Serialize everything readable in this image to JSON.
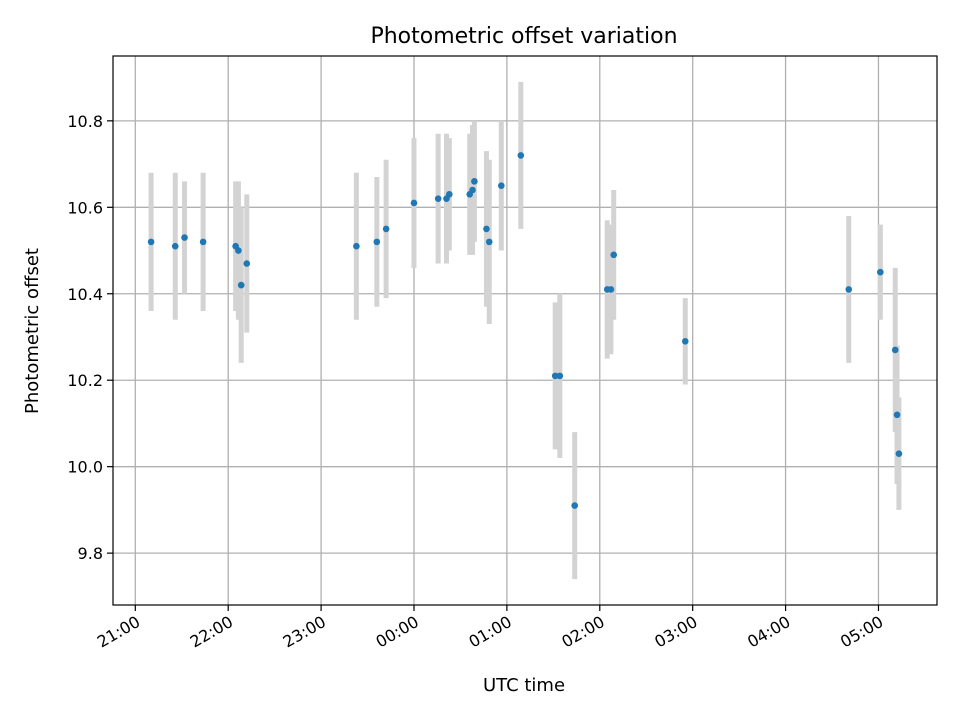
{
  "chart_data": {
    "type": "scatter",
    "title": "Photometric offset variation",
    "xlabel": "UTC time",
    "ylabel": "Photometric offset",
    "x_tick_values": [
      -3,
      -2,
      -1,
      0,
      1,
      2,
      3,
      4,
      5
    ],
    "x_tick_labels": [
      "21:00",
      "22:00",
      "23:00",
      "00:00",
      "01:00",
      "02:00",
      "03:00",
      "04:00",
      "05:00"
    ],
    "xlim": [
      -3.24,
      5.63
    ],
    "ylim": [
      9.68,
      10.95
    ],
    "y_ticks": [
      "9.8",
      "10.0",
      "10.2",
      "10.4",
      "10.6",
      "10.8"
    ],
    "grid": true,
    "legend": "none",
    "colors": {
      "point": "#1f77b4",
      "error_bar": "#d3d3d3"
    },
    "series": [
      {
        "x": [
          -2.83,
          -2.57,
          -2.47,
          -2.27,
          -1.92,
          -1.89,
          -1.86,
          -1.8,
          -0.62,
          -0.4,
          -0.3,
          0,
          0.26,
          0.35,
          0.38,
          0.6,
          0.63,
          0.65,
          0.78,
          0.81,
          0.94,
          1.15,
          1.52,
          1.57,
          1.73,
          2.08,
          2.12,
          2.15,
          2.92,
          4.68,
          5.02,
          5.18,
          5.2,
          5.22
        ],
        "y": [
          10.52,
          10.51,
          10.53,
          10.52,
          10.51,
          10.5,
          10.42,
          10.47,
          10.51,
          10.52,
          10.55,
          10.61,
          10.62,
          10.62,
          10.63,
          10.63,
          10.64,
          10.66,
          10.55,
          10.52,
          10.65,
          10.72,
          10.21,
          10.21,
          9.91,
          10.41,
          10.41,
          10.49,
          10.29,
          10.41,
          10.45,
          10.27,
          10.12,
          10.03
        ],
        "error": [
          0.16,
          0.17,
          0.13,
          0.16,
          0.15,
          0.16,
          0.18,
          0.16,
          0.17,
          0.15,
          0.16,
          0.15,
          0.15,
          0.15,
          0.13,
          0.14,
          0.15,
          0.14,
          0.18,
          0.19,
          0.15,
          0.17,
          0.17,
          0.19,
          0.17,
          0.16,
          0.15,
          0.15,
          0.1,
          0.17,
          0.11,
          0.19,
          0.16,
          0.13
        ]
      }
    ]
  }
}
